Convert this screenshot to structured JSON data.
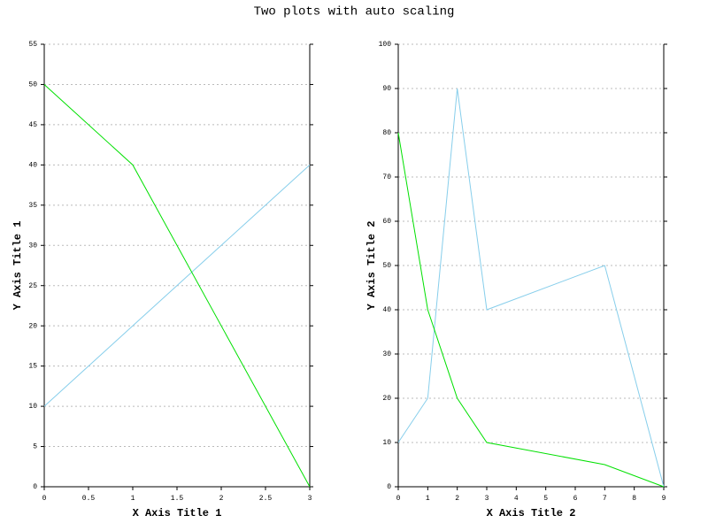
{
  "title": "Two plots with auto scaling",
  "chart_data": [
    {
      "type": "line",
      "x_label": "X Axis Title 1",
      "y_label": "Y Axis Title 1",
      "x": [
        0,
        1,
        3
      ],
      "series": [
        {
          "color": "#87ceeb",
          "values": [
            10,
            20,
            40
          ]
        },
        {
          "color": "#00e000",
          "values": [
            50,
            40,
            0
          ]
        }
      ],
      "xlim": [
        0,
        3
      ],
      "xticks": [
        0,
        0.5,
        1,
        1.5,
        2,
        2.5,
        3
      ],
      "ylim": [
        0,
        55
      ],
      "yticks": [
        0,
        5,
        10,
        15,
        20,
        25,
        30,
        35,
        40,
        45,
        50,
        55
      ],
      "grid": true
    },
    {
      "type": "line",
      "x_label": "X Axis Title 2",
      "y_label": "Y Axis Title 2",
      "x": [
        0,
        1,
        2,
        3,
        7,
        9
      ],
      "series": [
        {
          "color": "#87ceeb",
          "values": [
            10,
            20,
            90,
            40,
            50,
            0
          ]
        },
        {
          "color": "#00e000",
          "values": [
            80,
            40,
            20,
            10,
            5,
            0
          ]
        }
      ],
      "xlim": [
        0,
        9
      ],
      "xticks": [
        0,
        1,
        2,
        3,
        4,
        5,
        6,
        7,
        8,
        9
      ],
      "ylim": [
        0,
        100
      ],
      "yticks": [
        0,
        10,
        20,
        30,
        40,
        50,
        60,
        70,
        80,
        90,
        100
      ],
      "grid": true
    }
  ]
}
